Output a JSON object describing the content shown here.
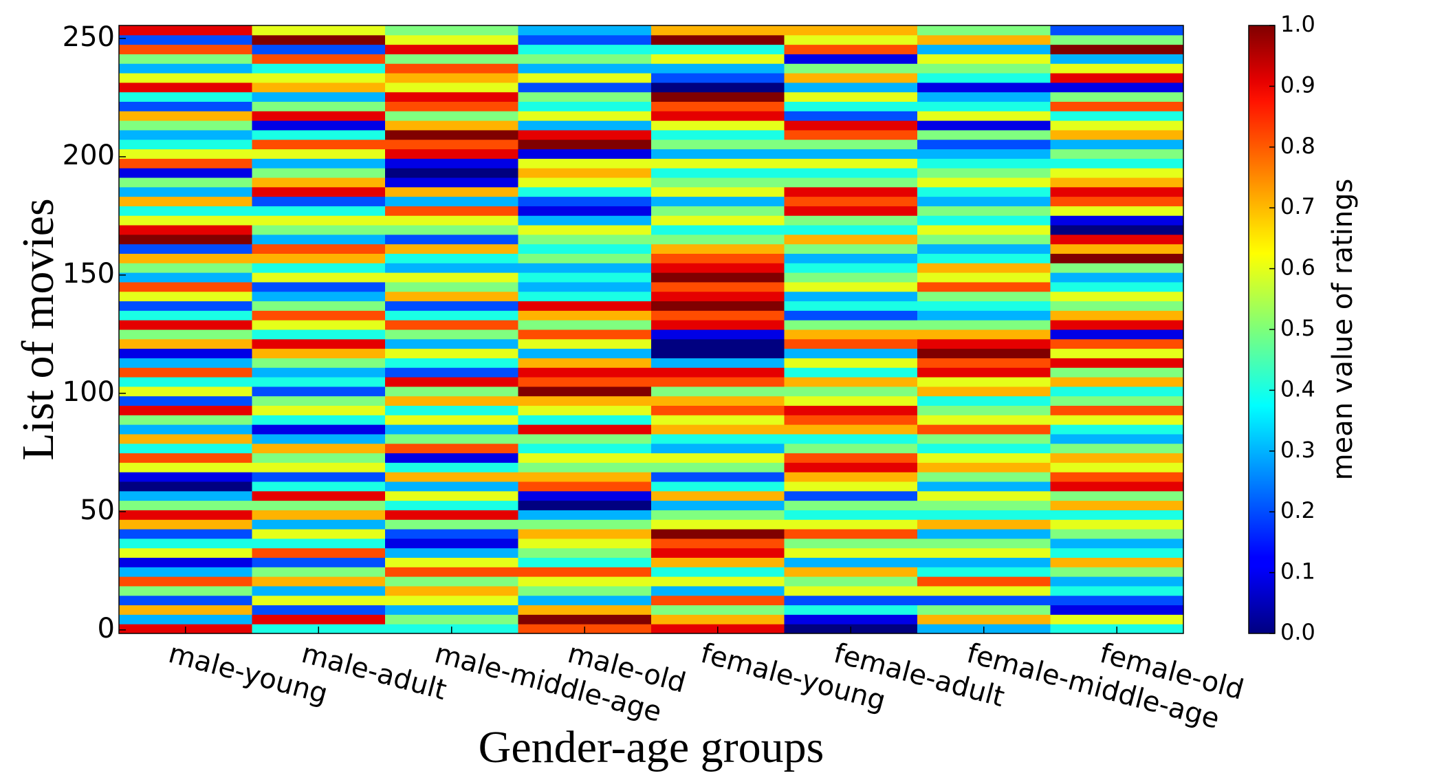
{
  "chart_data": {
    "type": "heatmap",
    "xlabel": "Gender-age groups",
    "ylabel": "List of movies",
    "colorbar_label": "mean value of ratings",
    "colormap": "jet",
    "categories": [
      "male-young",
      "male-adult",
      "male-middle-age",
      "male-old",
      "female-young",
      "female-adult",
      "female-middle-age",
      "female-old"
    ],
    "ylim": [
      -1.5,
      255.5
    ],
    "yticks": [
      0,
      50,
      100,
      150,
      200,
      250
    ],
    "zlim": [
      0,
      1
    ],
    "colorbar_ticks": [
      {
        "value": 0,
        "label": "0.0"
      },
      0.1,
      0.2,
      0.3,
      0.4,
      0.5,
      0.6,
      0.7,
      0.8,
      0.9,
      {
        "value": 1,
        "label": "1.0"
      }
    ],
    "z": [
      [
        0.9,
        0.3,
        0.7,
        0.2,
        0.5,
        0.8,
        0.3,
        0.1,
        0.6,
        0.4,
        0.2,
        0.7,
        0.9,
        0.5,
        0.3,
        0.0,
        0.1,
        0.6,
        0.8,
        0.4,
        0.7,
        0.3,
        0.5,
        0.9,
        0.2,
        0.6,
        0.4,
        0.8,
        0.3,
        0.1,
        0.7,
        0.5,
        0.9,
        0.4,
        0.2,
        0.6,
        0.8,
        0.3,
        0.5,
        0.7,
        0.2,
        1.0,
        0.9,
        0.6,
        0.4,
        0.7,
        0.3,
        0.5,
        0.1,
        0.8,
        0.6,
        0.4,
        0.3,
        0.5,
        0.7,
        0.2,
        0.4,
        0.9,
        0.6,
        0.3,
        0.5,
        0.8,
        0.2,
        0.9
      ],
      [
        0.4,
        0.9,
        0.2,
        0.6,
        0.3,
        0.7,
        0.5,
        0.2,
        0.8,
        0.4,
        0.6,
        0.3,
        0.7,
        0.5,
        0.9,
        0.4,
        0.2,
        0.6,
        0.5,
        0.7,
        0.3,
        0.1,
        0.4,
        0.6,
        0.5,
        0.2,
        0.4,
        0.3,
        0.5,
        0.7,
        0.9,
        0.4,
        0.6,
        0.8,
        0.5,
        0.3,
        0.2,
        0.6,
        0.4,
        0.7,
        0.8,
        0.3,
        0.5,
        0.6,
        0.4,
        0.2,
        0.9,
        0.7,
        0.5,
        0.3,
        0.6,
        0.8,
        0.4,
        0.1,
        0.9,
        0.5,
        0.3,
        0.7,
        0.6,
        0.4,
        0.8,
        0.2,
        1.0,
        0.6
      ],
      [
        0.4,
        0.5,
        0.3,
        0.6,
        0.7,
        0.5,
        0.8,
        0.6,
        0.3,
        0.1,
        0.2,
        0.5,
        0.9,
        0.4,
        0.6,
        0.3,
        0.7,
        0.4,
        0.1,
        0.8,
        0.5,
        0.3,
        0.6,
        0.4,
        0.7,
        0.5,
        0.9,
        0.2,
        0.4,
        0.6,
        0.3,
        0.5,
        0.8,
        0.4,
        0.2,
        0.7,
        0.5,
        0.6,
        0.3,
        0.4,
        0.7,
        0.2,
        0.5,
        0.6,
        0.8,
        0.3,
        0.7,
        0.1,
        0.0,
        0.1,
        0.9,
        0.8,
        1.0,
        0.7,
        0.5,
        0.8,
        0.9,
        0.6,
        0.7,
        0.8,
        0.5,
        0.9,
        0.6,
        0.5
      ],
      [
        0.8,
        1.0,
        0.7,
        0.3,
        0.5,
        0.6,
        0.8,
        0.4,
        0.5,
        0.6,
        0.7,
        0.5,
        0.3,
        0.0,
        0.1,
        0.8,
        0.7,
        0.5,
        0.6,
        0.4,
        0.5,
        0.9,
        0.4,
        0.6,
        0.7,
        1.0,
        0.8,
        0.9,
        0.7,
        0.3,
        0.6,
        0.8,
        0.5,
        0.7,
        0.9,
        0.4,
        0.3,
        0.4,
        0.3,
        0.5,
        0.4,
        0.5,
        0.6,
        0.3,
        0.1,
        0.2,
        0.4,
        0.6,
        0.7,
        0.6,
        0.1,
        1.0,
        0.9,
        0.3,
        0.6,
        0.4,
        0.5,
        0.2,
        0.6,
        0.3,
        0.5,
        0.4,
        0.2,
        0.3
      ],
      [
        0.9,
        0.7,
        0.5,
        0.8,
        0.3,
        0.6,
        0.4,
        0.7,
        0.9,
        0.8,
        1.0,
        0.6,
        0.5,
        0.3,
        0.7,
        0.4,
        0.2,
        0.5,
        0.6,
        0.3,
        0.4,
        0.7,
        0.6,
        0.8,
        0.7,
        0.5,
        0.8,
        0.9,
        0.3,
        0.0,
        0.0,
        0.1,
        0.9,
        0.8,
        1.0,
        0.9,
        0.8,
        1.0,
        0.9,
        0.8,
        0.7,
        0.5,
        0.4,
        0.6,
        0.5,
        0.3,
        0.6,
        0.5,
        0.4,
        0.6,
        0.3,
        0.5,
        0.4,
        0.6,
        0.9,
        0.8,
        1.0,
        0.0,
        0.2,
        0.3,
        0.6,
        0.4,
        1.0,
        0.7
      ],
      [
        0.0,
        0.1,
        0.4,
        0.2,
        0.6,
        0.5,
        0.7,
        0.3,
        0.6,
        0.5,
        0.8,
        0.6,
        0.4,
        0.5,
        0.2,
        0.6,
        0.7,
        0.9,
        0.8,
        0.5,
        0.4,
        0.7,
        0.8,
        0.9,
        0.6,
        0.5,
        0.7,
        0.4,
        0.6,
        0.3,
        0.8,
        0.7,
        0.5,
        0.2,
        0.4,
        0.3,
        0.6,
        0.5,
        0.4,
        0.3,
        0.5,
        0.7,
        0.4,
        0.5,
        0.9,
        0.8,
        0.9,
        0.5,
        0.4,
        0.6,
        0.3,
        0.5,
        0.8,
        0.9,
        0.2,
        0.4,
        0.6,
        0.3,
        0.7,
        0.5,
        0.1,
        0.8,
        0.6,
        0.7
      ],
      [
        0.3,
        0.7,
        0.5,
        0.2,
        0.6,
        0.8,
        0.4,
        0.3,
        0.6,
        0.5,
        0.3,
        0.7,
        0.4,
        0.5,
        0.6,
        0.3,
        0.5,
        0.7,
        0.6,
        0.4,
        0.5,
        0.8,
        0.6,
        0.5,
        0.4,
        0.7,
        0.6,
        0.9,
        0.8,
        1.0,
        0.9,
        0.7,
        0.5,
        0.3,
        0.4,
        0.5,
        0.8,
        0.6,
        0.7,
        0.4,
        0.3,
        0.5,
        0.6,
        0.4,
        0.5,
        0.3,
        0.4,
        0.6,
        0.5,
        0.4,
        0.3,
        0.2,
        0.5,
        0.1,
        0.6,
        0.4,
        0.3,
        0.1,
        0.4,
        0.5,
        0.6,
        0.3,
        0.7,
        0.5
      ],
      [
        0.4,
        0.6,
        0.1,
        0.2,
        0.4,
        0.3,
        0.5,
        0.7,
        0.4,
        0.3,
        0.5,
        0.6,
        0.4,
        0.7,
        0.5,
        0.9,
        0.8,
        0.6,
        0.7,
        0.5,
        0.3,
        0.4,
        0.6,
        0.8,
        0.5,
        0.4,
        0.7,
        0.5,
        0.9,
        0.6,
        0.8,
        0.1,
        0.9,
        0.7,
        0.5,
        0.6,
        0.4,
        0.3,
        0.5,
        1.0,
        0.7,
        0.9,
        0.0,
        0.1,
        0.6,
        0.8,
        0.9,
        0.7,
        0.6,
        0.4,
        0.5,
        0.3,
        0.7,
        0.6,
        0.4,
        0.8,
        0.5,
        0.1,
        0.9,
        0.6,
        0.3,
        1.0,
        0.5,
        0.2
      ]
    ]
  }
}
